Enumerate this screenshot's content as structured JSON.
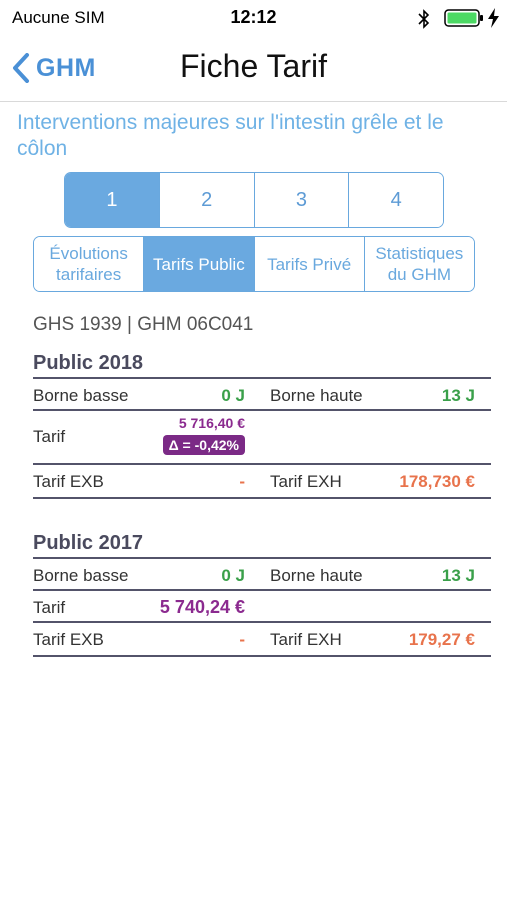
{
  "status_bar": {
    "carrier": "Aucune SIM",
    "time": "12:12",
    "icons": [
      "bluetooth-icon",
      "battery-icon",
      "charging-icon"
    ]
  },
  "nav": {
    "back_label": "GHM",
    "title": "Fiche Tarif"
  },
  "ghm_label": "Interventions majeures sur l'intestin grêle et le côlon",
  "steps": [
    "1",
    "2",
    "3",
    "4"
  ],
  "tabs": {
    "evolutions": [
      "Évolutions",
      "tarifaires"
    ],
    "public": "Tarifs Public",
    "prive": "Tarifs Privé",
    "stats": [
      "Statistiques",
      "du GHM"
    ]
  },
  "codes": "GHS 1939 | GHM 06C041",
  "public_2018": {
    "title": "Public 2018",
    "borne_basse_label": "Borne basse",
    "borne_basse_value": "0 J",
    "borne_haute_label": "Borne haute",
    "borne_haute_value": "13 J",
    "tarif_label": "Tarif",
    "tarif_value": "5 716,40 €",
    "tarif_delta": "Δ = -0,42%",
    "exb_label": "Tarif EXB",
    "exb_value": "-",
    "exh_label": "Tarif EXH",
    "exh_value": "178,730 €"
  },
  "public_2017": {
    "title": "Public 2017",
    "borne_basse_label": "Borne basse",
    "borne_basse_value": "0 J",
    "borne_haute_label": "Borne haute",
    "borne_haute_value": "13 J",
    "tarif_label": "Tarif",
    "tarif_value": "5 740,24 €",
    "exb_label": "Tarif EXB",
    "exb_value": "-",
    "exh_label": "Tarif EXH",
    "exh_value": "179,27 €"
  },
  "colors": {
    "accent": "#6aa9e0",
    "green": "#3aa04a",
    "purple": "#8b2a8f",
    "orange": "#e8734c",
    "battery": "#4cd964"
  }
}
